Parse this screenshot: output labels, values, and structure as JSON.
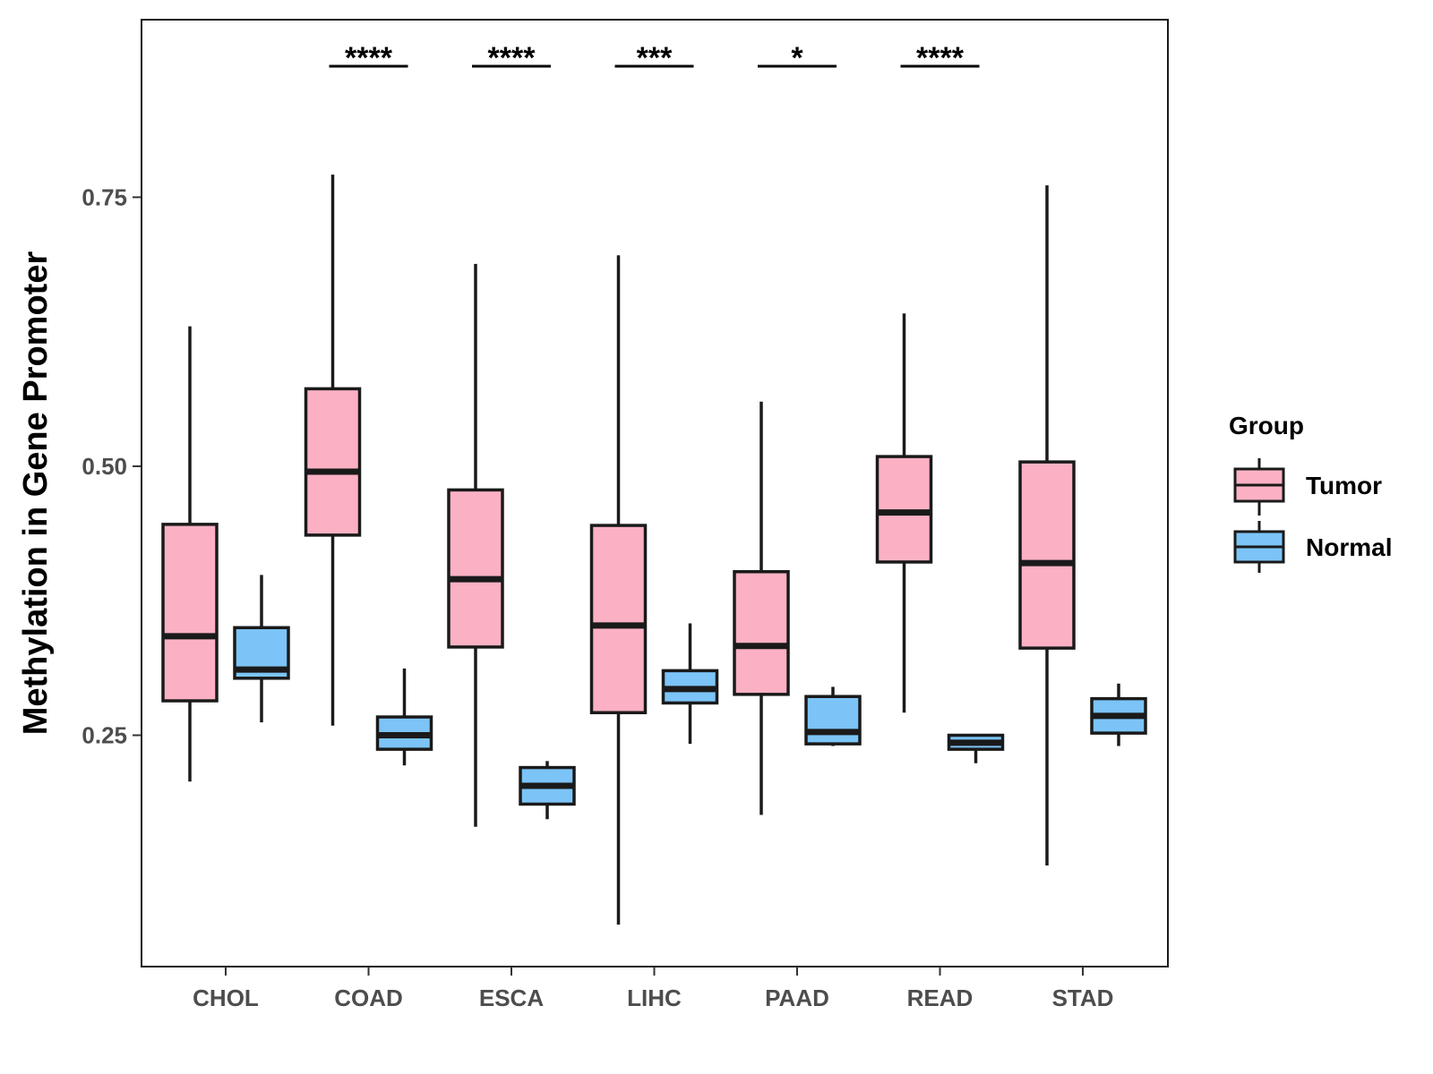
{
  "chart_data": {
    "type": "boxplot",
    "title": "",
    "xlabel": "",
    "ylabel": "Methylation in Gene Promoter",
    "ylim": [
      0.035,
      0.915
    ],
    "yticks": [
      0.25,
      0.5,
      0.75
    ],
    "ytick_labels": [
      "0.25",
      "0.50",
      "0.75"
    ],
    "categories": [
      "CHOL",
      "COAD",
      "ESCA",
      "LIHC",
      "PAAD",
      "READ",
      "STAD"
    ],
    "legend": {
      "title": "Group",
      "position": "right",
      "entries": [
        "Tumor",
        "Normal"
      ]
    },
    "series": [
      {
        "name": "Tumor",
        "color": "#FBB1C3",
        "boxes": [
          {
            "min": 0.207,
            "q1": 0.282,
            "median": 0.342,
            "q3": 0.446,
            "max": 0.63
          },
          {
            "min": 0.259,
            "q1": 0.436,
            "median": 0.495,
            "q3": 0.572,
            "max": 0.771
          },
          {
            "min": 0.165,
            "q1": 0.332,
            "median": 0.395,
            "q3": 0.478,
            "max": 0.688
          },
          {
            "min": 0.074,
            "q1": 0.271,
            "median": 0.352,
            "q3": 0.445,
            "max": 0.696
          },
          {
            "min": 0.176,
            "q1": 0.288,
            "median": 0.333,
            "q3": 0.402,
            "max": 0.56
          },
          {
            "min": 0.271,
            "q1": 0.411,
            "median": 0.457,
            "q3": 0.509,
            "max": 0.642
          },
          {
            "min": 0.129,
            "q1": 0.331,
            "median": 0.41,
            "q3": 0.504,
            "max": 0.761
          }
        ]
      },
      {
        "name": "Normal",
        "color": "#7CC4F7",
        "boxes": [
          {
            "min": 0.262,
            "q1": 0.303,
            "median": 0.311,
            "q3": 0.35,
            "max": 0.399
          },
          {
            "min": 0.222,
            "q1": 0.237,
            "median": 0.25,
            "q3": 0.267,
            "max": 0.312
          },
          {
            "min": 0.172,
            "q1": 0.186,
            "median": 0.203,
            "q3": 0.22,
            "max": 0.226
          },
          {
            "min": 0.242,
            "q1": 0.28,
            "median": 0.293,
            "q3": 0.31,
            "max": 0.354
          },
          {
            "min": 0.24,
            "q1": 0.242,
            "median": 0.253,
            "q3": 0.286,
            "max": 0.295
          },
          {
            "min": 0.224,
            "q1": 0.237,
            "median": 0.243,
            "q3": 0.25,
            "max": 0.251
          },
          {
            "min": 0.24,
            "q1": 0.252,
            "median": 0.268,
            "q3": 0.284,
            "max": 0.298
          }
        ]
      }
    ],
    "significance": [
      {
        "category": "COAD",
        "label": "****"
      },
      {
        "category": "ESCA",
        "label": "****"
      },
      {
        "category": "LIHC",
        "label": "***"
      },
      {
        "category": "PAAD",
        "label": "*"
      },
      {
        "category": "READ",
        "label": "****"
      }
    ]
  }
}
